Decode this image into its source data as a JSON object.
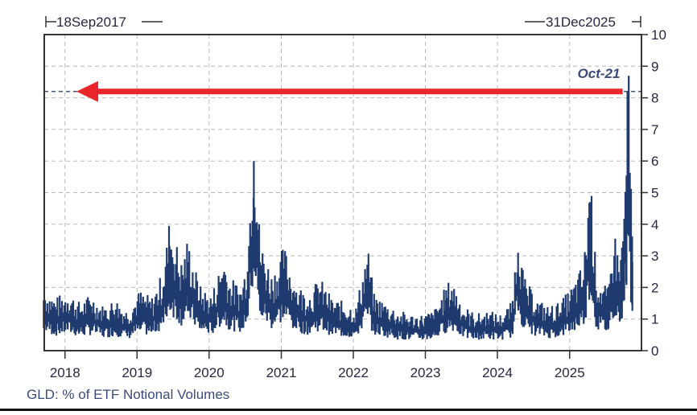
{
  "header": {
    "start_date": "18Sep2017",
    "end_date": "31Dec2025"
  },
  "annotation": {
    "label": "Oct-21",
    "value": 8.2,
    "arrow_color": "#e8262b"
  },
  "footer": {
    "caption": "GLD: % of ETF Notional Volumes"
  },
  "colors": {
    "series": "#1f3a6e",
    "caption": "#3b4a7a",
    "grid": "#b8b8b8",
    "axis": "#333333",
    "arrow": "#e8262b"
  },
  "chart_data": {
    "type": "line",
    "title": "GLD: % of ETF Notional Volumes",
    "xlabel": "",
    "ylabel": "",
    "ylim": [
      0,
      10
    ],
    "xlim": [
      "2017-09-18",
      "2025-12-31"
    ],
    "y_ticks": [
      0,
      1,
      2,
      3,
      4,
      5,
      6,
      7,
      8,
      9,
      10
    ],
    "x_ticks": [
      "2018",
      "2019",
      "2020",
      "2021",
      "2022",
      "2023",
      "2024",
      "2025"
    ],
    "grid": true,
    "y_axis_position": "right",
    "legend": null,
    "annotations": [
      {
        "text": "Oct-21",
        "x": "2025-10-21",
        "y": 8.2,
        "note": "Red arrow pointing left at peak level 8.2"
      }
    ],
    "series": [
      {
        "name": "GLD % of ETF Notional Volumes",
        "x": [
          "2017-09",
          "2017-11",
          "2018-01",
          "2018-03",
          "2018-05",
          "2018-07",
          "2018-09",
          "2018-11",
          "2019-01",
          "2019-03",
          "2019-05",
          "2019-06",
          "2019-08",
          "2019-09",
          "2019-11",
          "2020-01",
          "2020-03",
          "2020-04",
          "2020-06",
          "2020-07",
          "2020-08",
          "2020-09",
          "2020-11",
          "2021-01",
          "2021-03",
          "2021-05",
          "2021-07",
          "2021-09",
          "2021-11",
          "2022-01",
          "2022-03",
          "2022-04",
          "2022-06",
          "2022-08",
          "2022-10",
          "2022-12",
          "2023-02",
          "2023-04",
          "2023-05",
          "2023-07",
          "2023-09",
          "2023-11",
          "2024-01",
          "2024-03",
          "2024-04",
          "2024-05",
          "2024-07",
          "2024-09",
          "2024-11",
          "2025-01",
          "2025-03",
          "2025-04",
          "2025-05",
          "2025-07",
          "2025-08",
          "2025-09",
          "2025-10",
          "2025-10-21",
          "2025-11"
        ],
        "values": [
          1.6,
          1.3,
          1.5,
          1.2,
          1.4,
          1.1,
          1.3,
          1.0,
          1.5,
          1.3,
          2.0,
          3.3,
          2.2,
          2.8,
          1.6,
          1.4,
          2.4,
          1.8,
          1.6,
          2.5,
          6.0,
          2.8,
          1.9,
          2.6,
          1.7,
          1.4,
          1.8,
          1.3,
          1.2,
          1.1,
          2.6,
          1.4,
          1.2,
          1.0,
          0.9,
          0.9,
          1.0,
          1.6,
          1.8,
          1.1,
          0.9,
          1.0,
          0.9,
          1.2,
          3.1,
          1.8,
          1.3,
          1.1,
          1.2,
          1.6,
          2.2,
          4.7,
          1.9,
          1.5,
          3.0,
          2.2,
          4.8,
          8.2,
          2.8
        ]
      }
    ]
  }
}
